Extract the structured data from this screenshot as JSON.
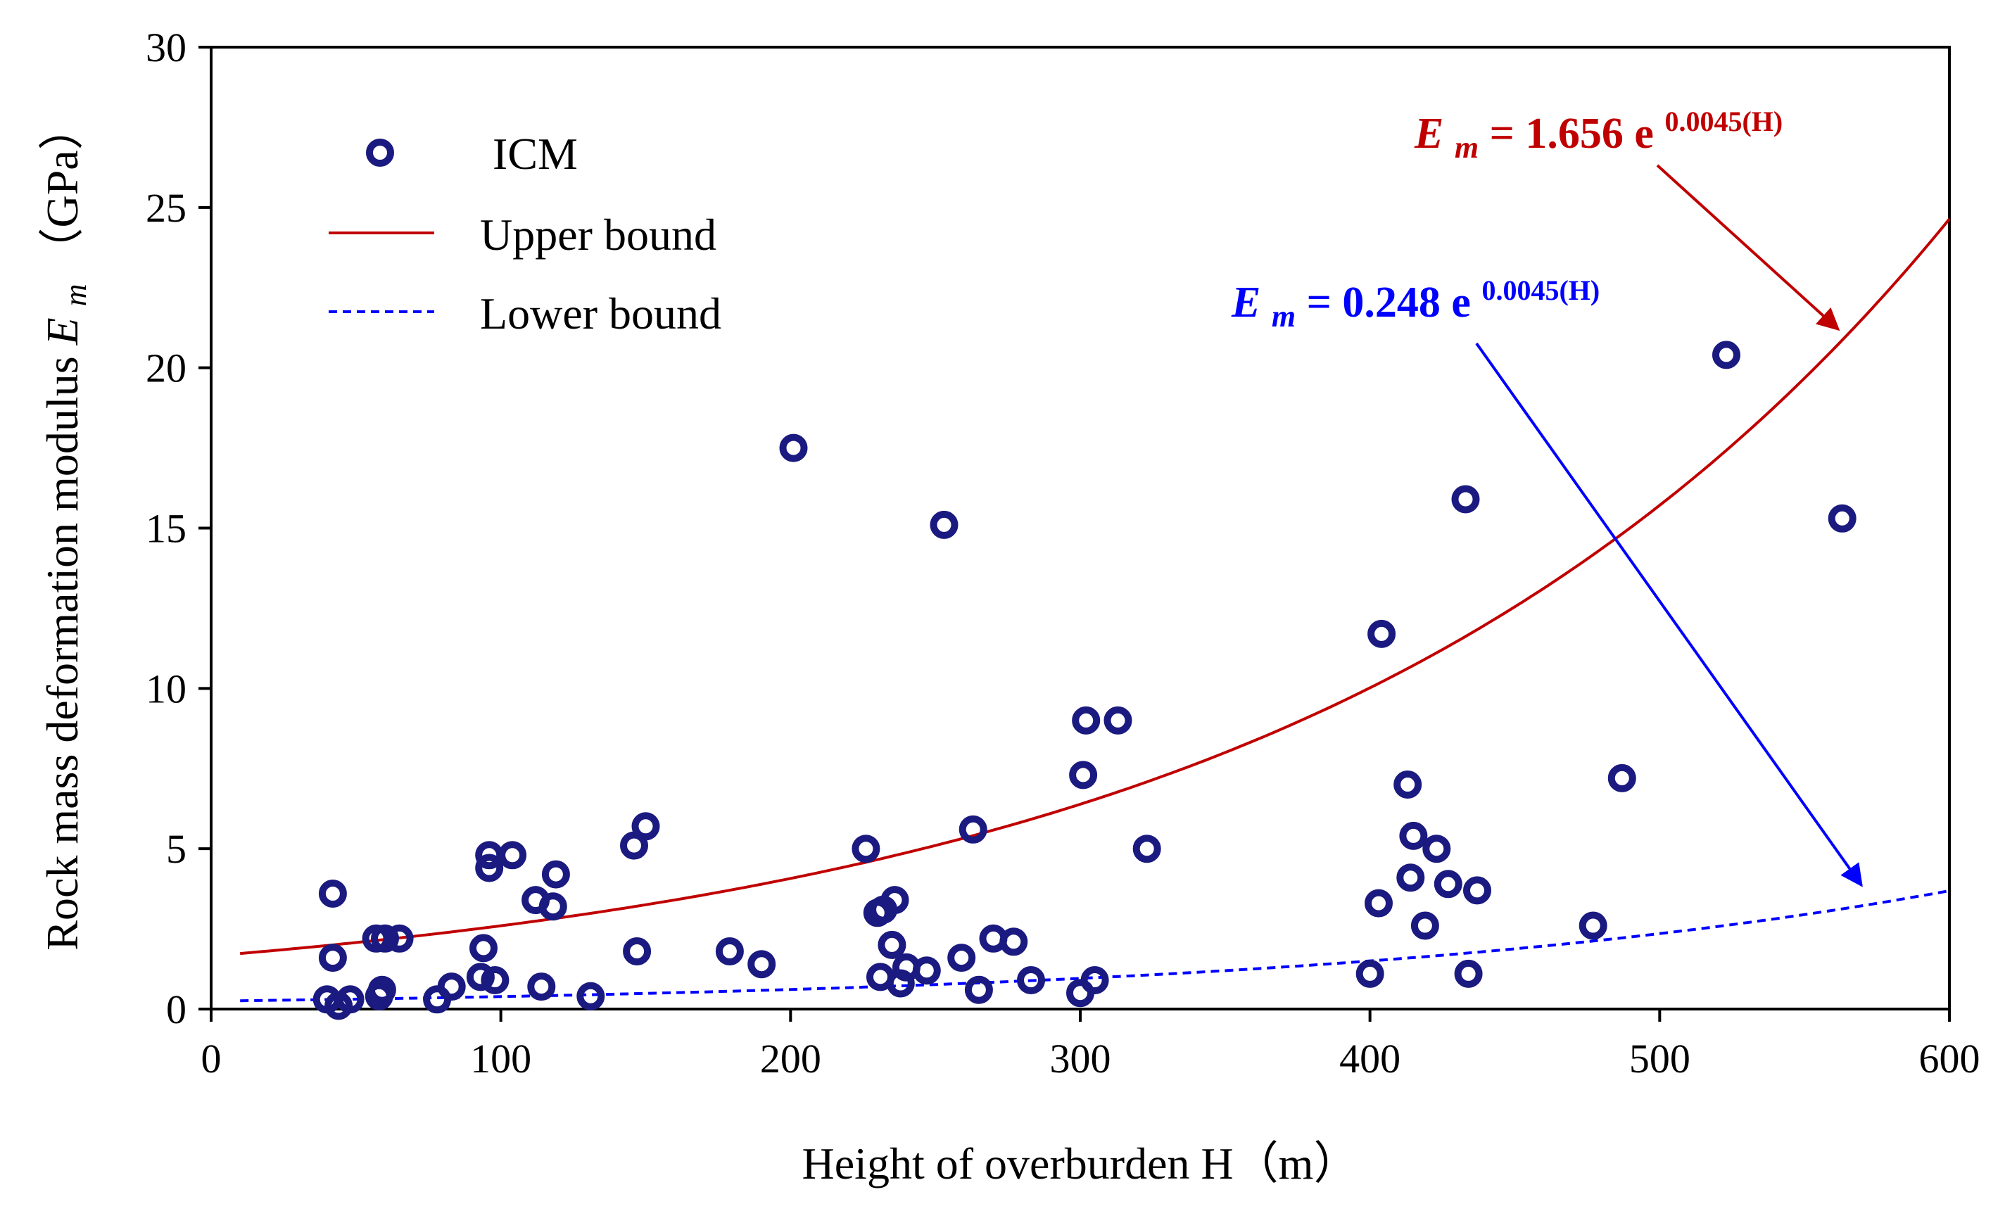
{
  "chart_data": {
    "type": "scatter",
    "title": "",
    "xlabel": "Height of overburden  H（m）",
    "ylabel_main": "Rock mass deformation modulus",
    "ylabel_symbol": "E",
    "ylabel_subscript": "m",
    "ylabel_unit": "（GPa）",
    "xlim": [
      0,
      600
    ],
    "ylim": [
      0,
      30
    ],
    "x_ticks": [
      0,
      100,
      200,
      300,
      400,
      500,
      600
    ],
    "y_ticks": [
      0,
      5,
      10,
      15,
      20,
      25,
      30
    ],
    "grid": false,
    "legend": [
      {
        "label": "ICM",
        "kind": "marker",
        "color": "#1a1a80"
      },
      {
        "label": "Upper bound",
        "kind": "solid-line",
        "color": "#c00000"
      },
      {
        "label": "Lower bound",
        "kind": "dashed-line",
        "color": "#0000ff"
      }
    ],
    "series": [
      {
        "name": "ICM",
        "kind": "scatter",
        "color": "#1a1a80",
        "points": [
          [
            40,
            0.3
          ],
          [
            42,
            3.6
          ],
          [
            42,
            1.6
          ],
          [
            44,
            0.1
          ],
          [
            48,
            0.3
          ],
          [
            57,
            2.2
          ],
          [
            58,
            0.4
          ],
          [
            59,
            0.6
          ],
          [
            60,
            2.2
          ],
          [
            65,
            2.2
          ],
          [
            78,
            0.3
          ],
          [
            83,
            0.7
          ],
          [
            93,
            1.0
          ],
          [
            94,
            1.9
          ],
          [
            96,
            4.8
          ],
          [
            96,
            4.4
          ],
          [
            98,
            0.9
          ],
          [
            104,
            4.8
          ],
          [
            112,
            3.4
          ],
          [
            114,
            0.7
          ],
          [
            118,
            3.2
          ],
          [
            119,
            4.2
          ],
          [
            131,
            0.4
          ],
          [
            146,
            5.1
          ],
          [
            147,
            1.8
          ],
          [
            150,
            5.7
          ],
          [
            179,
            1.8
          ],
          [
            190,
            1.4
          ],
          [
            201,
            17.5
          ],
          [
            226,
            5.0
          ],
          [
            230,
            3.0
          ],
          [
            231,
            1.0
          ],
          [
            232,
            3.1
          ],
          [
            235,
            2.0
          ],
          [
            236,
            3.4
          ],
          [
            238,
            0.8
          ],
          [
            240,
            1.3
          ],
          [
            247,
            1.2
          ],
          [
            253,
            15.1
          ],
          [
            259,
            1.6
          ],
          [
            263,
            5.6
          ],
          [
            265,
            0.6
          ],
          [
            270,
            2.2
          ],
          [
            277,
            2.1
          ],
          [
            283,
            0.9
          ],
          [
            300,
            0.5
          ],
          [
            301,
            7.3
          ],
          [
            302,
            9.0
          ],
          [
            305,
            0.9
          ],
          [
            313,
            9.0
          ],
          [
            323,
            5.0
          ],
          [
            400,
            1.1
          ],
          [
            403,
            3.3
          ],
          [
            404,
            11.7
          ],
          [
            413,
            7.0
          ],
          [
            414,
            4.1
          ],
          [
            415,
            5.4
          ],
          [
            419,
            2.6
          ],
          [
            423,
            5.0
          ],
          [
            427,
            3.9
          ],
          [
            433,
            15.9
          ],
          [
            434,
            1.1
          ],
          [
            437,
            3.7
          ],
          [
            477,
            2.6
          ],
          [
            487,
            7.2
          ],
          [
            523,
            20.4
          ],
          [
            563,
            15.3
          ]
        ]
      },
      {
        "name": "Upper bound",
        "kind": "curve",
        "a": 1.656,
        "b": 0.0045,
        "x_range": [
          10,
          600
        ],
        "color": "#c00000",
        "style": "solid"
      },
      {
        "name": "Lower bound",
        "kind": "curve",
        "a": 0.248,
        "b": 0.0045,
        "x_range": [
          10,
          600
        ],
        "color": "#0000ff",
        "style": "dashed"
      }
    ],
    "annotations": [
      {
        "id": "upper",
        "symbol": "E",
        "subscript": "m",
        "eq": "= 1.656 e",
        "exp": "0.0045(H)",
        "color": "#c00000",
        "points_to_x": 570
      },
      {
        "id": "lower",
        "symbol": "E",
        "subscript": "m",
        "eq": "= 0.248 e",
        "exp": "0.0045(H)",
        "color": "#0000ff",
        "points_to_x": 570
      }
    ]
  }
}
